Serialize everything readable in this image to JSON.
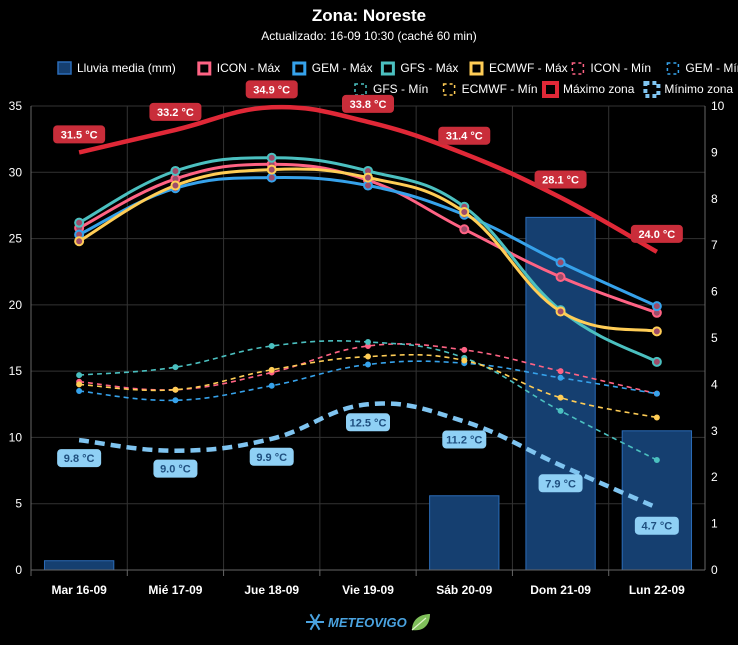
{
  "chart_data": {
    "type": "line",
    "title": "Zona: Noreste",
    "subtitle": "Actualizado: 16-09 10:30 (caché 60 min)",
    "categories": [
      "Mar 16-09",
      "Mié 17-09",
      "Jue 18-09",
      "Vie 19-09",
      "Sáb 20-09",
      "Dom 21-09",
      "Lun 22-09"
    ],
    "y_left": {
      "min": 0,
      "max": 35,
      "ticks": [
        0,
        5,
        10,
        15,
        20,
        25,
        30,
        35
      ]
    },
    "y_right": {
      "min": 0,
      "max": 10,
      "ticks": [
        0,
        1,
        2,
        3,
        4,
        5,
        6,
        7,
        8,
        9,
        10
      ]
    },
    "grid": true,
    "legend_position": "top",
    "bars": {
      "name": "Lluvia media (mm)",
      "axis": "right",
      "values": [
        0.2,
        0,
        0,
        0,
        1.6,
        7.6,
        3.0
      ],
      "color": "#1f5fa5"
    },
    "series": [
      {
        "name": "ICON - Máx",
        "color": "#ff6384",
        "style": "solid",
        "values": [
          25.8,
          29.5,
          30.6,
          29.4,
          25.7,
          22.1,
          19.4
        ]
      },
      {
        "name": "GEM - Máx",
        "color": "#36a2eb",
        "style": "solid",
        "values": [
          25.3,
          28.8,
          29.6,
          29.0,
          26.8,
          23.2,
          19.9
        ]
      },
      {
        "name": "GFS - Máx",
        "color": "#4bc0c0",
        "style": "solid",
        "values": [
          26.2,
          30.1,
          31.1,
          30.1,
          27.4,
          19.6,
          15.7
        ]
      },
      {
        "name": "ECMWF - Máx",
        "color": "#ffcd56",
        "style": "solid",
        "values": [
          24.8,
          29.0,
          30.2,
          29.6,
          27.0,
          19.5,
          18.0
        ]
      },
      {
        "name": "ICON - Mín",
        "color": "#ff6384",
        "style": "dashed",
        "values": [
          14.2,
          13.6,
          14.9,
          16.9,
          16.6,
          15.0,
          13.3
        ]
      },
      {
        "name": "GEM - Mín",
        "color": "#36a2eb",
        "style": "dashed",
        "values": [
          13.5,
          12.8,
          13.9,
          15.5,
          15.6,
          14.5,
          13.3
        ]
      },
      {
        "name": "GFS - Mín",
        "color": "#4bc0c0",
        "style": "dashed",
        "values": [
          14.7,
          15.3,
          16.9,
          17.2,
          16.0,
          12.0,
          8.3
        ]
      },
      {
        "name": "ECMWF - Mín",
        "color": "#ffcd56",
        "style": "dashed",
        "values": [
          14.0,
          13.6,
          15.1,
          16.1,
          15.8,
          13.0,
          11.5
        ]
      },
      {
        "name": "Máximo zona",
        "color": "#e02837",
        "style": "thick",
        "values": [
          31.5,
          33.2,
          34.9,
          33.8,
          31.4,
          28.1,
          24.0
        ],
        "labels": [
          "31.5 °C",
          "33.2 °C",
          "34.9 °C",
          "33.8 °C",
          "31.4 °C",
          "28.1 °C",
          "24.0 °C"
        ]
      },
      {
        "name": "Mínimo zona",
        "color": "#7fc4f0",
        "style": "thick-dashed",
        "values": [
          9.8,
          9.0,
          9.9,
          12.5,
          11.2,
          7.9,
          4.7
        ],
        "labels": [
          "9.8 °C",
          "9.0 °C",
          "9.9 °C",
          "12.5 °C",
          "11.2 °C",
          "7.9 °C",
          "4.7 °C"
        ]
      }
    ]
  },
  "footer": {
    "logo_text": "METEOVIGO"
  }
}
